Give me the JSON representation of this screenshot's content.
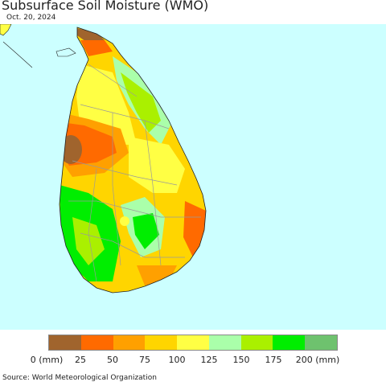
{
  "title": "Subsurface Soil Moisture (WMO)",
  "date": "Oct. 20, 2024",
  "source": "Source: World Meteorological Organization",
  "colors": {
    "ocean": "#ccffff",
    "boundary": "#9a9a9a",
    "coast": "#222222"
  },
  "legend": {
    "swatches": [
      {
        "color": "#a0642d",
        "range": "0-25"
      },
      {
        "color": "#ff6a00",
        "range": "25-50"
      },
      {
        "color": "#ffa000",
        "range": "50-75"
      },
      {
        "color": "#ffd500",
        "range": "75-100"
      },
      {
        "color": "#ffff44",
        "range": "100-125"
      },
      {
        "color": "#aaffaa",
        "range": "125-150"
      },
      {
        "color": "#aaf000",
        "range": "150-175"
      },
      {
        "color": "#00ee00",
        "range": "175-200"
      },
      {
        "color": "#6ec26e",
        "range": "200+"
      }
    ],
    "labels": [
      "0 (mm)",
      "25",
      "50",
      "75",
      "100",
      "125",
      "150",
      "175",
      "200 (mm)"
    ]
  }
}
